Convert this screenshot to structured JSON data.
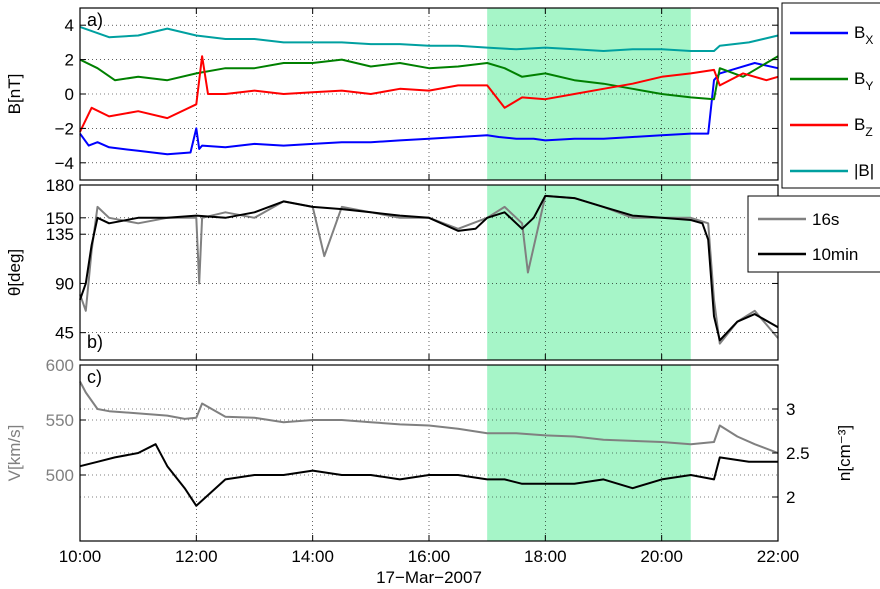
{
  "figure": {
    "x_ticks": [
      "10:00",
      "12:00",
      "14:00",
      "16:00",
      "18:00",
      "20:00",
      "22:00"
    ],
    "x_axis_label": "17−Mar−2007",
    "highlight": {
      "start_hour": 17.0,
      "end_hour": 20.5,
      "color": "#a6f5c8"
    }
  },
  "chart_data": [
    {
      "type": "line",
      "panel_label": "a)",
      "ylabel": "B[nT]",
      "x_range_hours": [
        10,
        22
      ],
      "ylim": [
        -5,
        5
      ],
      "yticks": [
        "−4",
        "−2",
        "0",
        "2",
        "4"
      ],
      "ytick_values": [
        -4,
        -2,
        0,
        2,
        4
      ],
      "grid": true,
      "legend": {
        "placement": "outside-right",
        "entries": [
          {
            "main": "B",
            "sub": "X"
          },
          {
            "main": "B",
            "sub": "Y"
          },
          {
            "main": "B",
            "sub": "Z"
          },
          {
            "main": "|B|",
            "sub": ""
          }
        ]
      },
      "series": [
        {
          "name": "Bx",
          "color": "#0000ff",
          "x": [
            10.0,
            10.15,
            10.3,
            10.5,
            11.0,
            11.5,
            11.9,
            12.0,
            12.05,
            12.1,
            12.5,
            13.0,
            13.5,
            14.0,
            14.5,
            15.0,
            15.5,
            16.0,
            16.5,
            17.0,
            17.2,
            17.5,
            17.8,
            18.0,
            18.5,
            19.0,
            19.5,
            20.0,
            20.5,
            20.8,
            20.9,
            21.0,
            21.3,
            21.6,
            22.0
          ],
          "y": [
            -2.3,
            -3.0,
            -2.8,
            -3.1,
            -3.3,
            -3.5,
            -3.4,
            -2.0,
            -3.2,
            -3.0,
            -3.1,
            -2.9,
            -3.0,
            -2.9,
            -2.8,
            -2.8,
            -2.7,
            -2.6,
            -2.5,
            -2.4,
            -2.5,
            -2.6,
            -2.6,
            -2.7,
            -2.6,
            -2.6,
            -2.5,
            -2.4,
            -2.3,
            -2.3,
            0.8,
            1.2,
            1.5,
            1.8,
            1.5
          ]
        },
        {
          "name": "By",
          "color": "#008000",
          "x": [
            10.0,
            10.3,
            10.6,
            11.0,
            11.5,
            12.0,
            12.5,
            13.0,
            13.5,
            14.0,
            14.5,
            15.0,
            15.5,
            16.0,
            16.5,
            17.0,
            17.3,
            17.6,
            18.0,
            18.5,
            19.0,
            19.5,
            20.0,
            20.5,
            20.9,
            21.0,
            21.4,
            21.8,
            22.0
          ],
          "y": [
            2.0,
            1.5,
            0.8,
            1.0,
            0.8,
            1.2,
            1.5,
            1.5,
            1.8,
            1.8,
            2.0,
            1.6,
            1.8,
            1.5,
            1.6,
            1.8,
            1.5,
            1.0,
            1.2,
            0.8,
            0.6,
            0.3,
            0.0,
            -0.2,
            -0.3,
            1.5,
            1.0,
            1.8,
            2.2
          ]
        },
        {
          "name": "Bz",
          "color": "#ff0000",
          "x": [
            10.0,
            10.2,
            10.5,
            11.0,
            11.5,
            12.0,
            12.1,
            12.2,
            12.5,
            13.0,
            13.5,
            14.0,
            14.5,
            15.0,
            15.5,
            16.0,
            16.5,
            17.0,
            17.3,
            17.6,
            18.0,
            18.5,
            19.0,
            19.5,
            20.0,
            20.5,
            20.9,
            21.0,
            21.4,
            21.8,
            22.0
          ],
          "y": [
            -2.2,
            -0.8,
            -1.3,
            -1.0,
            -1.4,
            -0.6,
            2.2,
            0.0,
            0.0,
            0.2,
            0.0,
            0.1,
            0.2,
            0.0,
            0.3,
            0.2,
            0.5,
            0.5,
            -0.8,
            -0.2,
            -0.3,
            0.0,
            0.3,
            0.6,
            1.0,
            1.2,
            1.4,
            0.5,
            1.2,
            0.8,
            1.0
          ]
        },
        {
          "name": "|B|",
          "color": "#00a0a0",
          "x": [
            10.0,
            10.5,
            11.0,
            11.5,
            12.0,
            12.5,
            13.0,
            13.5,
            14.0,
            14.5,
            15.0,
            15.5,
            16.0,
            16.5,
            17.0,
            17.5,
            18.0,
            18.5,
            19.0,
            19.5,
            20.0,
            20.5,
            20.9,
            21.0,
            21.5,
            22.0
          ],
          "y": [
            3.9,
            3.3,
            3.4,
            3.8,
            3.4,
            3.2,
            3.2,
            3.0,
            3.0,
            3.0,
            2.9,
            2.9,
            2.8,
            2.8,
            2.7,
            2.6,
            2.7,
            2.6,
            2.5,
            2.6,
            2.6,
            2.5,
            2.5,
            2.8,
            3.0,
            3.4
          ]
        }
      ]
    },
    {
      "type": "line",
      "panel_label": "b)",
      "ylabel": "θ[deg]",
      "x_range_hours": [
        10,
        22
      ],
      "ylim": [
        20,
        180
      ],
      "yticks": [
        "45",
        "90",
        "135",
        "150",
        "180"
      ],
      "ytick_values": [
        45,
        90,
        135,
        150,
        180
      ],
      "grid": true,
      "legend": {
        "placement": "outside-right",
        "entries": [
          "16s",
          "10min"
        ]
      },
      "series": [
        {
          "name": "16s",
          "color": "#808080",
          "x": [
            10.0,
            10.1,
            10.2,
            10.3,
            10.5,
            11.0,
            11.5,
            12.0,
            12.05,
            12.1,
            12.5,
            13.0,
            13.5,
            14.0,
            14.2,
            14.5,
            15.0,
            15.5,
            16.0,
            16.5,
            17.0,
            17.3,
            17.6,
            17.7,
            18.0,
            18.5,
            19.0,
            19.5,
            20.0,
            20.5,
            20.8,
            20.9,
            21.0,
            21.3,
            21.6,
            22.0
          ],
          "y": [
            80,
            65,
            120,
            160,
            150,
            145,
            150,
            150,
            90,
            150,
            155,
            150,
            165,
            160,
            115,
            160,
            155,
            150,
            150,
            140,
            150,
            160,
            145,
            100,
            170,
            168,
            160,
            150,
            150,
            150,
            145,
            75,
            35,
            55,
            65,
            40
          ]
        },
        {
          "name": "10min",
          "color": "#000000",
          "x": [
            10.0,
            10.1,
            10.2,
            10.3,
            10.5,
            11.0,
            11.5,
            12.0,
            12.5,
            13.0,
            13.5,
            14.0,
            14.5,
            15.0,
            15.5,
            16.0,
            16.5,
            16.8,
            17.0,
            17.3,
            17.6,
            17.8,
            18.0,
            18.5,
            19.0,
            19.5,
            20.0,
            20.5,
            20.7,
            20.8,
            20.9,
            21.0,
            21.3,
            21.6,
            22.0
          ],
          "y": [
            75,
            90,
            125,
            150,
            145,
            150,
            150,
            152,
            150,
            155,
            165,
            160,
            158,
            155,
            152,
            150,
            138,
            140,
            150,
            155,
            140,
            150,
            170,
            168,
            160,
            152,
            150,
            148,
            145,
            130,
            60,
            38,
            55,
            62,
            50
          ]
        }
      ]
    },
    {
      "type": "line",
      "panel_label": "c)",
      "ylabel": "V[km/s]",
      "ylabel_right": "n[cm⁻³]",
      "x_range_hours": [
        10,
        22
      ],
      "ylim": [
        440,
        600
      ],
      "yticks": [
        "500",
        "550",
        "600"
      ],
      "ytick_values": [
        500,
        550,
        600
      ],
      "ylim_right": [
        1.5,
        3.5
      ],
      "yticks_right": [
        "2",
        "2.5",
        "3"
      ],
      "ytick_values_right": [
        2,
        2.5,
        3
      ],
      "grid": true,
      "series": [
        {
          "name": "V",
          "axis": "left",
          "color": "#808080",
          "x": [
            10.0,
            10.1,
            10.3,
            10.5,
            11.0,
            11.5,
            11.8,
            12.0,
            12.1,
            12.5,
            13.0,
            13.5,
            14.0,
            14.5,
            15.0,
            15.5,
            16.0,
            16.5,
            17.0,
            17.5,
            18.0,
            18.5,
            19.0,
            19.5,
            20.0,
            20.5,
            20.9,
            21.0,
            21.3,
            21.6,
            22.0
          ],
          "y": [
            585,
            575,
            560,
            558,
            556,
            554,
            551,
            552,
            565,
            553,
            552,
            548,
            550,
            550,
            548,
            546,
            545,
            542,
            538,
            538,
            536,
            535,
            532,
            531,
            530,
            528,
            530,
            545,
            535,
            528,
            520
          ]
        },
        {
          "name": "n",
          "axis": "right",
          "color": "#000000",
          "x": [
            10.0,
            10.3,
            10.6,
            11.0,
            11.3,
            11.5,
            11.8,
            12.0,
            12.5,
            13.0,
            13.5,
            14.0,
            14.5,
            15.0,
            15.5,
            16.0,
            16.5,
            17.0,
            17.3,
            17.6,
            18.0,
            18.5,
            19.0,
            19.5,
            20.0,
            20.5,
            20.9,
            21.0,
            21.5,
            22.0
          ],
          "y": [
            2.35,
            2.4,
            2.45,
            2.5,
            2.6,
            2.35,
            2.1,
            1.9,
            2.2,
            2.25,
            2.25,
            2.3,
            2.25,
            2.25,
            2.2,
            2.25,
            2.25,
            2.2,
            2.2,
            2.15,
            2.15,
            2.15,
            2.2,
            2.1,
            2.2,
            2.25,
            2.2,
            2.45,
            2.4,
            2.4
          ]
        }
      ]
    }
  ]
}
